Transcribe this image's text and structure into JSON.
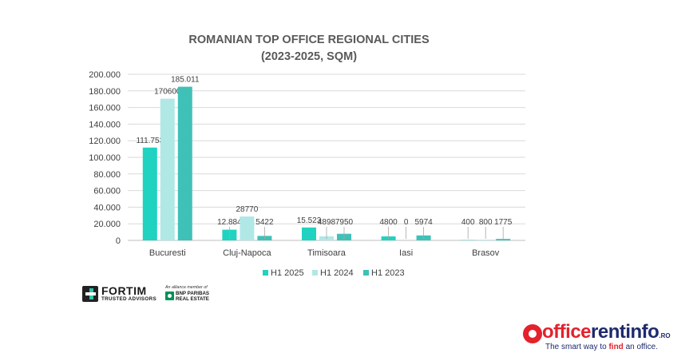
{
  "chart_data": {
    "type": "bar",
    "title_lines": [
      "ROMANIAN TOP OFFICE REGIONAL CITIES",
      "(2023-2025, SQM)"
    ],
    "categories": [
      "Bucuresti",
      "Cluj-Napoca",
      "Timisoara",
      "Iasi",
      "Brasov"
    ],
    "series": [
      {
        "name": "H1 2025",
        "color": "#1fd3c0",
        "values": [
          111753,
          12884,
          15523,
          4800,
          400
        ],
        "labels": [
          "111.753",
          "12.884",
          "15.523",
          "4800",
          "400"
        ]
      },
      {
        "name": "H1 2024",
        "color": "#b0e8e6",
        "values": [
          170600,
          28770,
          4898,
          0,
          800
        ],
        "labels": [
          "170600",
          "28770",
          "4898",
          "0",
          "800"
        ]
      },
      {
        "name": "H1 2023",
        "color": "#3fc1b7",
        "values": [
          185011,
          5422,
          7950,
          5974,
          1775
        ],
        "labels": [
          "185.011",
          "5422",
          "7950",
          "5974",
          "1775"
        ]
      }
    ],
    "ylim": [
      0,
      200000
    ],
    "yticks": [
      0,
      20000,
      40000,
      60000,
      80000,
      100000,
      120000,
      140000,
      160000,
      180000,
      200000
    ],
    "ytick_labels": [
      "0",
      "20.000",
      "40.000",
      "60.000",
      "80.000",
      "100.000",
      "120.000",
      "140.000",
      "160.000",
      "180.000",
      "200.000"
    ],
    "grid": true,
    "legend_position": "bottom"
  },
  "branding": {
    "fortim_name": "FORTIM",
    "fortim_sub": "TRUSTED ADVISORS",
    "bnp_alliance": "An alliance member of",
    "bnp_line1": "BNP PARIBAS",
    "bnp_line2": "REAL ESTATE",
    "officerent_a": "office",
    "officerent_b": "rentinfo",
    "officerent_ro": ".RO",
    "tagline_pre": "The smart way to ",
    "tagline_hl": "find",
    "tagline_post": " an office."
  }
}
